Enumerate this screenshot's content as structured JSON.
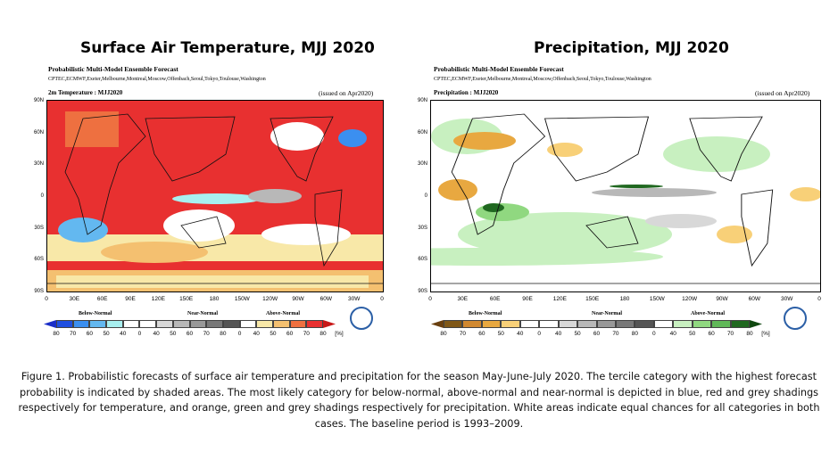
{
  "panels": [
    {
      "title": "Surface Air Temperature, MJJ 2020",
      "subtitle": "Probabilistic Multi-Model Ensemble Forecast",
      "centres": "CPTEC,ECMWF,Exeter,Melbourne,Montreal,Moscow,Offenbach,Seoul,Tokyo,Toulouse,Washington",
      "map_label": "2m Temperature : MJJ2020",
      "issued": "(issued on Apr2020)",
      "dominant_category": "Above-Normal",
      "colorbar": {
        "categories": [
          "Below-Normal",
          "Near-Normal",
          "Above-Normal"
        ],
        "colors": [
          "#1f4fe0",
          "#3b8ff0",
          "#63b8f0",
          "#a8f0f0",
          "#ffffff",
          "#ffffff",
          "#d8d8d8",
          "#b8b8b8",
          "#989898",
          "#787878",
          "#555555",
          "#ffffff",
          "#f8e8a8",
          "#f4c070",
          "#ee7040",
          "#e83030"
        ],
        "arrow_low": "#1a2ec8",
        "arrow_high": "#c81818"
      }
    },
    {
      "title": "Precipitation, MJJ 2020",
      "subtitle": "Probabilistic Multi-Model Ensemble Forecast",
      "centres": "CPTEC,ECMWF,Exeter,Melbourne,Montreal,Moscow,Offenbach,Seoul,Tokyo,Toulouse,Washington",
      "map_label": "Precipitation : MJJ2020",
      "issued": "(issued on Apr2020)",
      "dominant_category": "Equal chances",
      "colorbar": {
        "categories": [
          "Below-Normal",
          "Near-Normal",
          "Above-Normal"
        ],
        "colors": [
          "#805818",
          "#d08830",
          "#e8a840",
          "#f8d078",
          "#ffffff",
          "#ffffff",
          "#d8d8d8",
          "#b8b8b8",
          "#989898",
          "#787878",
          "#555555",
          "#ffffff",
          "#c8f0c0",
          "#90d880",
          "#60b858",
          "#206820"
        ],
        "arrow_low": "#6a4010",
        "arrow_high": "#104810"
      }
    }
  ],
  "x_ticks": [
    "0",
    "30E",
    "60E",
    "90E",
    "120E",
    "150E",
    "180",
    "150W",
    "120W",
    "90W",
    "60W",
    "30W",
    "0"
  ],
  "y_ticks": [
    "90N",
    "60N",
    "30N",
    "0",
    "30S",
    "60S",
    "90S"
  ],
  "colorbar_labels": [
    "80",
    "70",
    "60",
    "50",
    "40",
    "0",
    "40",
    "50",
    "60",
    "70",
    "80",
    "0",
    "40",
    "50",
    "60",
    "70",
    "80",
    "[%]"
  ],
  "caption": "Figure 1. Probabilistic forecasts of surface air temperature and precipitation for the season May-June-July 2020.  The tercile category with the highest forecast probability is indicated by shaded areas. The most likely category for below-normal, above-normal and near-normal is depicted in blue, red and grey shadings respectively for temperature, and orange, green and grey shadings respectively for precipitation. White areas indicate equal chances for all categories in both cases.  The baseline period is 1993–2009."
}
